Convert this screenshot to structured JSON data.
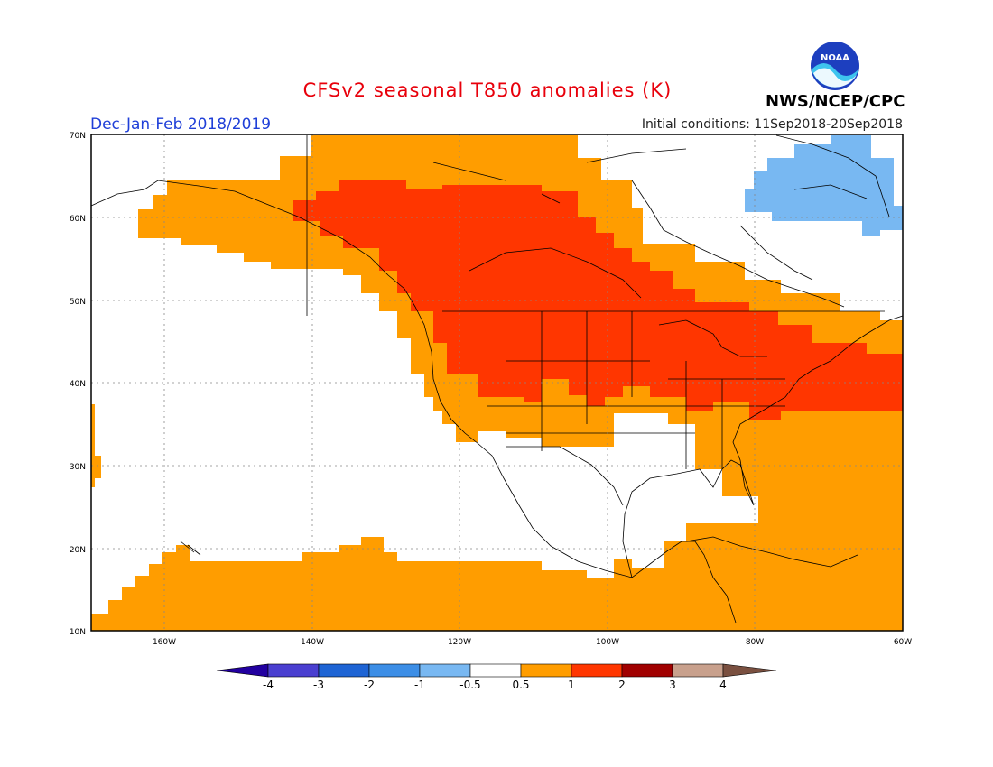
{
  "title": "CFSv2 seasonal T850 anomalies (K)",
  "season_label": "Dec-Jan-Feb 2018/2019",
  "initial_conditions": "Initial conditions: 11Sep2018-20Sep2018",
  "agency": "NWS/NCEP/CPC",
  "logo_text": "NOAA",
  "map": {
    "lon_labels": [
      "160W",
      "140W",
      "120W",
      "100W",
      "80W",
      "60W"
    ],
    "lat_labels": [
      "70N",
      "60N",
      "50N",
      "40N",
      "30N",
      "20N",
      "10N"
    ],
    "extent": {
      "lon": [
        -170,
        -60
      ],
      "lat": [
        10,
        70
      ]
    },
    "grid": "dotted"
  },
  "legend": {
    "ticks": [
      "-4",
      "-3",
      "-2",
      "-1",
      "-0.5",
      "0.5",
      "1",
      "2",
      "3",
      "4"
    ],
    "colors": [
      "#2200a0",
      "#4a3fd0",
      "#1e64d4",
      "#3c8ee6",
      "#78b8f2",
      "#ffffff",
      "#ff9d00",
      "#ff3600",
      "#a00000",
      "#c8a08c",
      "#7a5040"
    ]
  },
  "colors": {
    "anomaly_0_5_to_1": "#ff9d00",
    "anomaly_1_to_2": "#ff3600",
    "anomaly_neg_1_to_neg_0_5": "#78b8f2"
  }
}
